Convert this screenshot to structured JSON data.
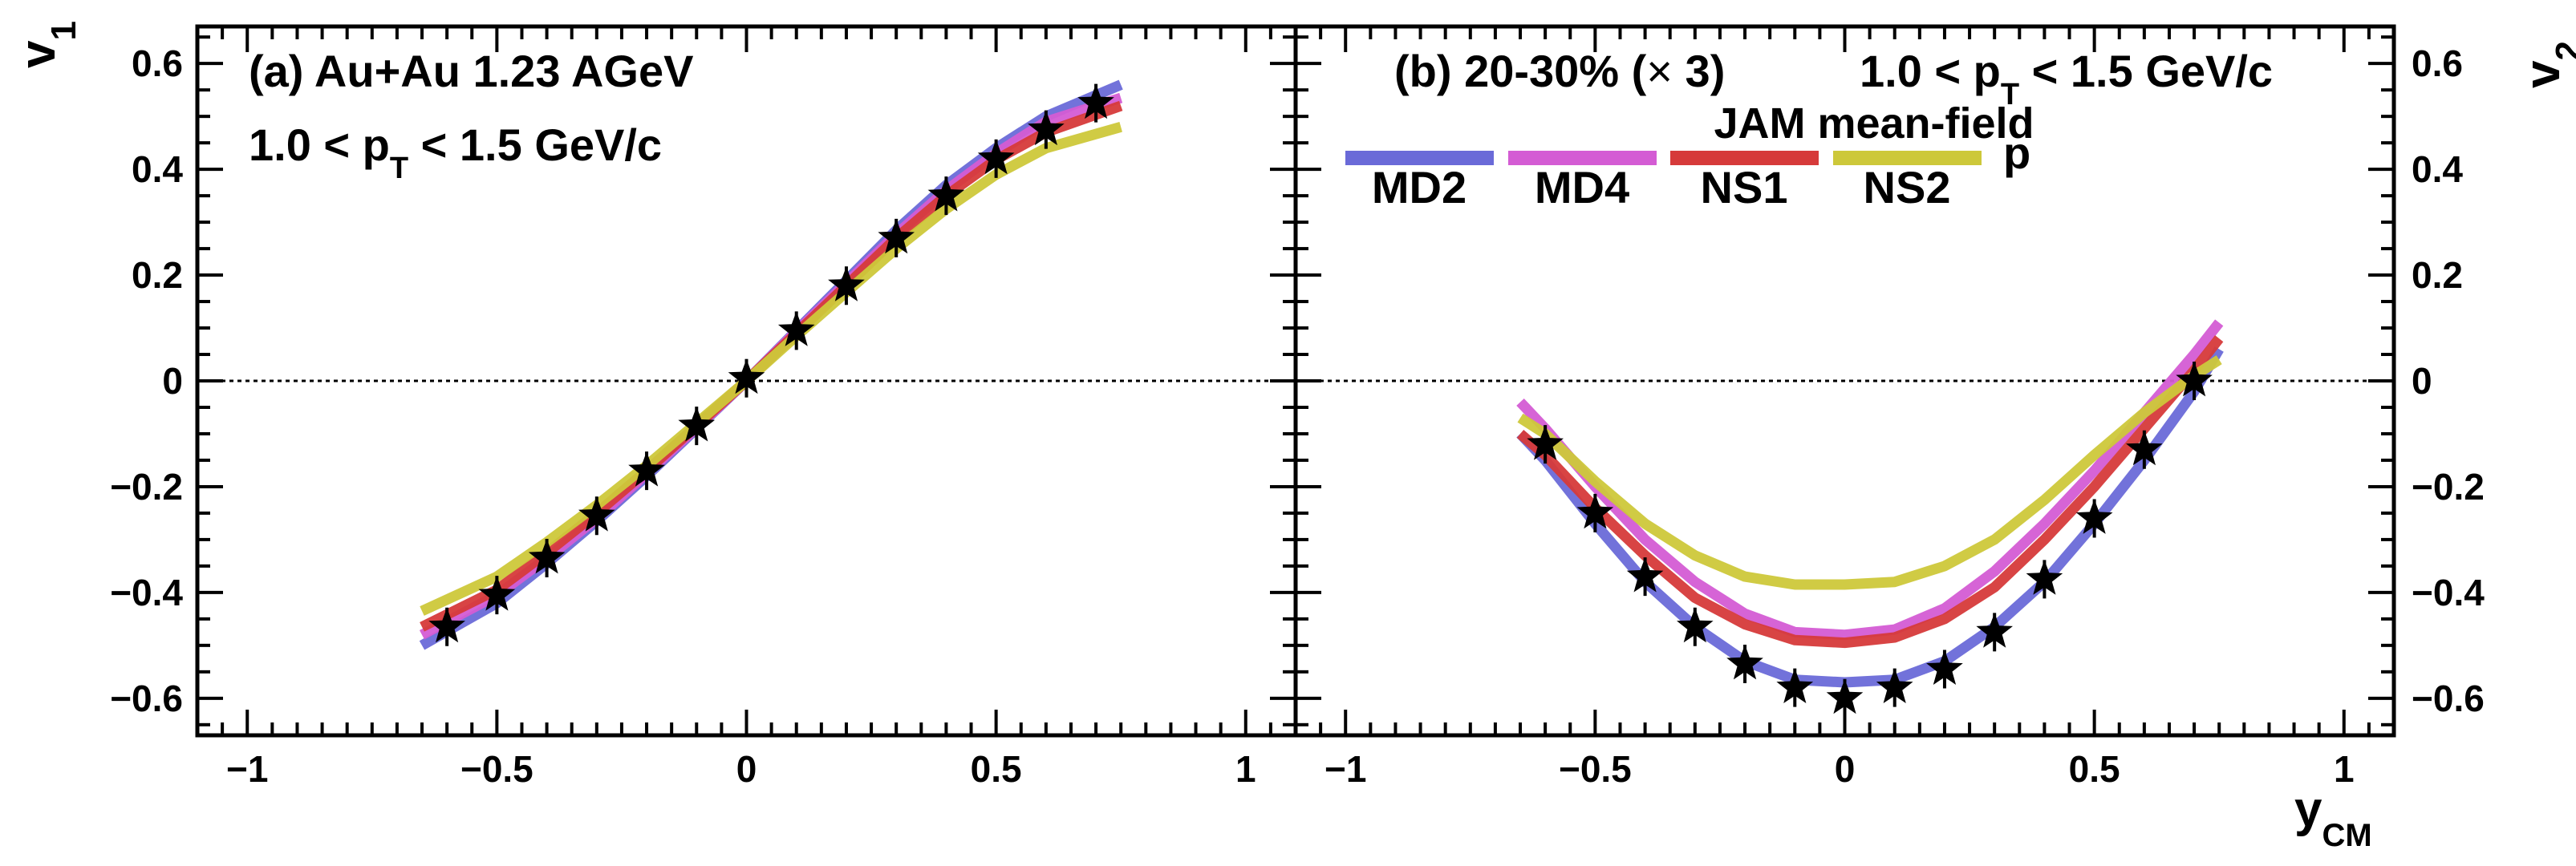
{
  "chart_data": [
    {
      "type": "line",
      "panel_label": "(a) Au+Au 1.23 AGeV",
      "subtitle_main": "1.0 < p",
      "subtitle_sub": "T",
      "subtitle_tail": " < 1.5 GeV/c",
      "ylabel_main": "v",
      "ylabel_sub": "1",
      "xlim": [
        -1.1,
        1.1
      ],
      "ylim": [
        -0.67,
        0.67
      ],
      "xticks": [
        -1,
        -0.5,
        0,
        0.5,
        1
      ],
      "xticklabels": [
        "−1",
        "−0.5",
        "0",
        "0.5",
        "1"
      ],
      "yticks": [
        -0.6,
        -0.4,
        -0.2,
        0,
        0.2,
        0.4,
        0.6
      ],
      "yticklabels": [
        "−0.6",
        "−0.4",
        "−0.2",
        "0",
        "0.2",
        "0.4",
        "0.6"
      ],
      "reference_line": 0,
      "series": [
        {
          "name": "MD2",
          "color": "#6a6ad8",
          "x": [
            -0.65,
            -0.5,
            -0.4,
            -0.3,
            -0.2,
            -0.1,
            0,
            0.1,
            0.2,
            0.3,
            0.4,
            0.5,
            0.6,
            0.75
          ],
          "y": [
            -0.5,
            -0.42,
            -0.345,
            -0.265,
            -0.18,
            -0.09,
            0,
            0.095,
            0.19,
            0.285,
            0.37,
            0.44,
            0.5,
            0.56
          ]
        },
        {
          "name": "MD4",
          "color": "#d45cd4",
          "x": [
            -0.65,
            -0.5,
            -0.4,
            -0.3,
            -0.2,
            -0.1,
            0,
            0.1,
            0.2,
            0.3,
            0.4,
            0.5,
            0.6,
            0.75
          ],
          "y": [
            -0.48,
            -0.405,
            -0.335,
            -0.26,
            -0.175,
            -0.088,
            0,
            0.093,
            0.185,
            0.277,
            0.36,
            0.43,
            0.49,
            0.535
          ]
        },
        {
          "name": "NS1",
          "color": "#d63a3a",
          "x": [
            -0.65,
            -0.5,
            -0.4,
            -0.3,
            -0.2,
            -0.1,
            0,
            0.1,
            0.2,
            0.3,
            0.4,
            0.5,
            0.6,
            0.75
          ],
          "y": [
            -0.465,
            -0.395,
            -0.325,
            -0.25,
            -0.17,
            -0.085,
            0,
            0.09,
            0.18,
            0.27,
            0.35,
            0.418,
            0.47,
            0.52
          ]
        },
        {
          "name": "NS2",
          "color": "#cdc83a",
          "x": [
            -0.65,
            -0.5,
            -0.4,
            -0.3,
            -0.2,
            -0.1,
            0,
            0.1,
            0.2,
            0.3,
            0.4,
            0.5,
            0.6,
            0.75
          ],
          "y": [
            -0.435,
            -0.37,
            -0.305,
            -0.235,
            -0.16,
            -0.08,
            0,
            0.085,
            0.168,
            0.25,
            0.325,
            0.39,
            0.44,
            0.48
          ]
        }
      ],
      "data_points": {
        "x": [
          -0.6,
          -0.5,
          -0.4,
          -0.3,
          -0.2,
          -0.1,
          0,
          0.1,
          0.2,
          0.3,
          0.4,
          0.5,
          0.6,
          0.7
        ],
        "y": [
          -0.465,
          -0.405,
          -0.335,
          -0.255,
          -0.17,
          -0.085,
          0.005,
          0.095,
          0.18,
          0.27,
          0.35,
          0.42,
          0.475,
          0.525
        ]
      }
    },
    {
      "type": "line",
      "panel_label": "(b)  20-30% (",
      "panel_label_symbol": "×",
      "panel_label_tail": " 3)",
      "subtitle_main": "1.0 < p",
      "subtitle_sub": "T",
      "subtitle_tail": " < 1.5 GeV/c",
      "legend_header": "JAM mean-field",
      "legend_particle": "p",
      "xlabel_main": "y",
      "xlabel_sub": "CM",
      "ylabel_main": "v",
      "ylabel_sub": "2",
      "xlim": [
        -1.1,
        1.1
      ],
      "ylim": [
        -0.67,
        0.67
      ],
      "xticks": [
        -1,
        -0.5,
        0,
        0.5,
        1
      ],
      "xticklabels": [
        "−1",
        "−0.5",
        "0",
        "0.5",
        "1"
      ],
      "yticks": [
        -0.6,
        -0.4,
        -0.2,
        0,
        0.2,
        0.4,
        0.6
      ],
      "yticklabels": [
        "−0.6",
        "−0.4",
        "−0.2",
        "0",
        "0.2",
        "0.4",
        "0.6"
      ],
      "reference_line": 0,
      "series": [
        {
          "name": "MD2",
          "color": "#6a6ad8",
          "x": [
            -0.65,
            -0.6,
            -0.5,
            -0.4,
            -0.3,
            -0.2,
            -0.1,
            0,
            0.1,
            0.2,
            0.3,
            0.4,
            0.5,
            0.6,
            0.7,
            0.75
          ],
          "y": [
            -0.1,
            -0.15,
            -0.27,
            -0.38,
            -0.465,
            -0.53,
            -0.565,
            -0.57,
            -0.565,
            -0.53,
            -0.465,
            -0.38,
            -0.27,
            -0.15,
            -0.02,
            0.06
          ]
        },
        {
          "name": "MD4",
          "color": "#d45cd4",
          "x": [
            -0.65,
            -0.6,
            -0.5,
            -0.4,
            -0.3,
            -0.2,
            -0.1,
            0,
            0.1,
            0.2,
            0.3,
            0.4,
            0.5,
            0.6,
            0.7,
            0.75
          ],
          "y": [
            -0.04,
            -0.09,
            -0.2,
            -0.3,
            -0.38,
            -0.44,
            -0.475,
            -0.48,
            -0.47,
            -0.43,
            -0.36,
            -0.27,
            -0.17,
            -0.06,
            0.05,
            0.11
          ]
        },
        {
          "name": "NS1",
          "color": "#d63a3a",
          "x": [
            -0.65,
            -0.6,
            -0.5,
            -0.4,
            -0.3,
            -0.2,
            -0.1,
            0,
            0.1,
            0.2,
            0.3,
            0.4,
            0.5,
            0.6,
            0.7,
            0.75
          ],
          "y": [
            -0.1,
            -0.14,
            -0.24,
            -0.33,
            -0.41,
            -0.46,
            -0.49,
            -0.495,
            -0.485,
            -0.45,
            -0.39,
            -0.3,
            -0.2,
            -0.09,
            0.02,
            0.08
          ]
        },
        {
          "name": "NS2",
          "color": "#cdc83a",
          "x": [
            -0.65,
            -0.6,
            -0.5,
            -0.4,
            -0.3,
            -0.2,
            -0.1,
            0,
            0.1,
            0.2,
            0.3,
            0.4,
            0.5,
            0.6,
            0.7,
            0.75
          ],
          "y": [
            -0.07,
            -0.1,
            -0.19,
            -0.27,
            -0.33,
            -0.37,
            -0.385,
            -0.385,
            -0.38,
            -0.35,
            -0.3,
            -0.225,
            -0.14,
            -0.06,
            0.01,
            0.04
          ]
        }
      ],
      "data_points": {
        "x": [
          -0.6,
          -0.5,
          -0.4,
          -0.3,
          -0.2,
          -0.1,
          0,
          0.1,
          0.2,
          0.3,
          0.4,
          0.5,
          0.6,
          0.7
        ],
        "y": [
          -0.12,
          -0.25,
          -0.37,
          -0.465,
          -0.535,
          -0.58,
          -0.6,
          -0.58,
          -0.545,
          -0.475,
          -0.375,
          -0.26,
          -0.13,
          0.0
        ]
      }
    }
  ]
}
